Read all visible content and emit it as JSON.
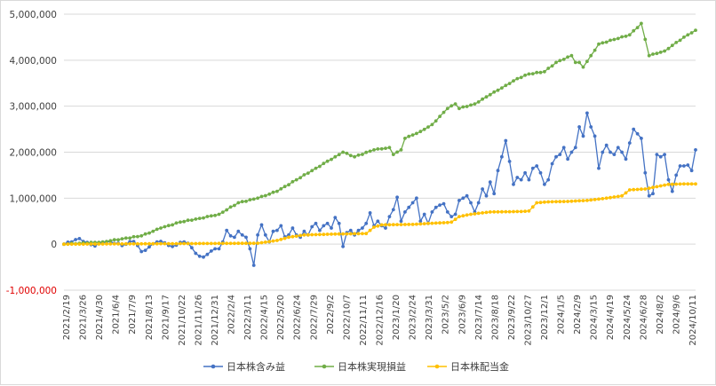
{
  "chart_data": {
    "type": "line",
    "y_ticks": [
      "5,000,000",
      "4,000,000",
      "3,000,000",
      "2,000,000",
      "1,000,000",
      "0",
      "-1,000,000"
    ],
    "y_tick_values": [
      5000000,
      4000000,
      3000000,
      2000000,
      1000000,
      0,
      -1000000
    ],
    "ylim": [
      -1000000,
      5000000
    ],
    "x_tick_labels": [
      "2021/2/19",
      "2021/3/26",
      "2021/4/30",
      "2021/6/4",
      "2021/7/9",
      "2021/8/13",
      "2021/9/17",
      "2021/10/22",
      "2021/11/26",
      "2021/12/31",
      "2022/2/4",
      "2022/3/11",
      "2022/4/15",
      "2022/5/20",
      "2022/6/24",
      "2022/7/29",
      "2022/9/2",
      "2022/10/7",
      "2022/11/11",
      "2022/12/16",
      "2023/1/20",
      "2023/2/24",
      "2023/3/31",
      "2023/5/2",
      "2023/6/9",
      "2023/7/14",
      "2023/8/18",
      "2023/9/22",
      "2023/10/27",
      "2023/12/1",
      "2024/1/5",
      "2024/2/9",
      "2024/3/15",
      "2024/4/19",
      "2024/5/24",
      "2024/6/28",
      "2024/8/2",
      "2024/9/6",
      "2024/10/11"
    ],
    "grid": true,
    "legend_position": "bottom",
    "series": [
      {
        "name": "日本株含み益",
        "color": "#4472c4",
        "anchors": [
          [
            0,
            0
          ],
          [
            2,
            50000
          ],
          [
            4,
            120000
          ],
          [
            6,
            40000
          ],
          [
            8,
            -40000
          ],
          [
            10,
            30000
          ],
          [
            12,
            60000
          ],
          [
            14,
            20000
          ],
          [
            15,
            -30000
          ],
          [
            16,
            0
          ],
          [
            18,
            60000
          ],
          [
            19,
            -30000
          ],
          [
            20,
            -160000
          ],
          [
            22,
            -60000
          ],
          [
            24,
            50000
          ],
          [
            26,
            30000
          ],
          [
            28,
            -50000
          ],
          [
            30,
            40000
          ],
          [
            32,
            20000
          ],
          [
            34,
            -200000
          ],
          [
            36,
            -280000
          ],
          [
            38,
            -150000
          ],
          [
            40,
            -100000
          ],
          [
            41,
            50000
          ],
          [
            42,
            300000
          ],
          [
            43,
            180000
          ],
          [
            44,
            150000
          ],
          [
            45,
            280000
          ],
          [
            46,
            200000
          ],
          [
            47,
            150000
          ],
          [
            48,
            -100000
          ],
          [
            49,
            -460000
          ],
          [
            50,
            200000
          ],
          [
            51,
            420000
          ],
          [
            52,
            200000
          ],
          [
            53,
            50000
          ],
          [
            54,
            280000
          ],
          [
            55,
            300000
          ],
          [
            56,
            400000
          ],
          [
            57,
            160000
          ],
          [
            58,
            200000
          ],
          [
            59,
            350000
          ],
          [
            60,
            200000
          ],
          [
            61,
            150000
          ],
          [
            62,
            280000
          ],
          [
            63,
            200000
          ],
          [
            64,
            380000
          ],
          [
            65,
            450000
          ],
          [
            66,
            300000
          ],
          [
            67,
            400000
          ],
          [
            68,
            450000
          ],
          [
            69,
            350000
          ],
          [
            70,
            580000
          ],
          [
            71,
            450000
          ],
          [
            72,
            -50000
          ],
          [
            73,
            250000
          ],
          [
            74,
            300000
          ],
          [
            75,
            200000
          ],
          [
            76,
            300000
          ],
          [
            77,
            350000
          ],
          [
            78,
            450000
          ],
          [
            79,
            680000
          ],
          [
            80,
            400000
          ],
          [
            81,
            500000
          ],
          [
            82,
            400000
          ],
          [
            83,
            350000
          ],
          [
            84,
            600000
          ],
          [
            85,
            750000
          ],
          [
            86,
            1020000
          ],
          [
            87,
            500000
          ],
          [
            88,
            700000
          ],
          [
            89,
            800000
          ],
          [
            90,
            900000
          ],
          [
            91,
            1000000
          ],
          [
            92,
            500000
          ],
          [
            93,
            650000
          ],
          [
            94,
            450000
          ],
          [
            95,
            700000
          ],
          [
            96,
            800000
          ],
          [
            97,
            850000
          ],
          [
            98,
            880000
          ],
          [
            99,
            700000
          ],
          [
            100,
            600000
          ],
          [
            101,
            650000
          ],
          [
            102,
            950000
          ],
          [
            103,
            1000000
          ],
          [
            104,
            1050000
          ],
          [
            105,
            900000
          ],
          [
            106,
            700000
          ],
          [
            107,
            900000
          ],
          [
            108,
            1200000
          ],
          [
            109,
            1050000
          ],
          [
            110,
            1350000
          ],
          [
            111,
            1100000
          ],
          [
            112,
            1600000
          ],
          [
            113,
            1900000
          ],
          [
            114,
            2250000
          ],
          [
            115,
            1800000
          ],
          [
            116,
            1300000
          ],
          [
            117,
            1450000
          ],
          [
            118,
            1400000
          ],
          [
            119,
            1550000
          ],
          [
            120,
            1400000
          ],
          [
            121,
            1650000
          ],
          [
            122,
            1700000
          ],
          [
            123,
            1550000
          ],
          [
            124,
            1300000
          ],
          [
            125,
            1400000
          ],
          [
            126,
            1750000
          ],
          [
            127,
            1900000
          ],
          [
            128,
            1950000
          ],
          [
            129,
            2100000
          ],
          [
            130,
            1850000
          ],
          [
            131,
            2000000
          ],
          [
            132,
            2100000
          ],
          [
            133,
            2550000
          ],
          [
            134,
            2350000
          ],
          [
            135,
            2850000
          ],
          [
            136,
            2550000
          ],
          [
            137,
            2350000
          ],
          [
            138,
            1650000
          ],
          [
            139,
            2000000
          ],
          [
            140,
            2150000
          ],
          [
            141,
            2000000
          ],
          [
            142,
            1950000
          ],
          [
            143,
            2100000
          ],
          [
            144,
            2000000
          ],
          [
            145,
            1850000
          ],
          [
            146,
            2200000
          ],
          [
            147,
            2500000
          ],
          [
            148,
            2400000
          ],
          [
            149,
            2300000
          ],
          [
            150,
            1550000
          ],
          [
            151,
            1050000
          ],
          [
            152,
            1100000
          ],
          [
            153,
            1950000
          ],
          [
            154,
            1900000
          ],
          [
            155,
            1950000
          ],
          [
            156,
            1400000
          ],
          [
            157,
            1150000
          ],
          [
            158,
            1500000
          ],
          [
            159,
            1700000
          ],
          [
            160,
            1700000
          ],
          [
            161,
            1720000
          ],
          [
            162,
            1600000
          ],
          [
            163,
            2050000
          ]
        ]
      },
      {
        "name": "日本株実現損益",
        "color": "#70ad47",
        "anchors": [
          [
            0,
            0
          ],
          [
            10,
            50000
          ],
          [
            20,
            180000
          ],
          [
            25,
            350000
          ],
          [
            30,
            480000
          ],
          [
            35,
            560000
          ],
          [
            40,
            650000
          ],
          [
            45,
            900000
          ],
          [
            50,
            1000000
          ],
          [
            55,
            1150000
          ],
          [
            60,
            1400000
          ],
          [
            65,
            1650000
          ],
          [
            70,
            1900000
          ],
          [
            72,
            2000000
          ],
          [
            75,
            1900000
          ],
          [
            80,
            2050000
          ],
          [
            84,
            2100000
          ],
          [
            85,
            1950000
          ],
          [
            87,
            2050000
          ],
          [
            88,
            2300000
          ],
          [
            92,
            2450000
          ],
          [
            95,
            2600000
          ],
          [
            99,
            2950000
          ],
          [
            101,
            3050000
          ],
          [
            102,
            2950000
          ],
          [
            106,
            3050000
          ],
          [
            110,
            3250000
          ],
          [
            114,
            3450000
          ],
          [
            117,
            3600000
          ],
          [
            120,
            3700000
          ],
          [
            124,
            3750000
          ],
          [
            127,
            3950000
          ],
          [
            131,
            4100000
          ],
          [
            132,
            3950000
          ],
          [
            133,
            3950000
          ],
          [
            134,
            3850000
          ],
          [
            136,
            4100000
          ],
          [
            138,
            4350000
          ],
          [
            142,
            4450000
          ],
          [
            146,
            4550000
          ],
          [
            149,
            4800000
          ],
          [
            151,
            4100000
          ],
          [
            155,
            4200000
          ],
          [
            160,
            4500000
          ],
          [
            163,
            4650000
          ]
        ]
      },
      {
        "name": "日本株配当金",
        "color": "#ffc000",
        "anchors": [
          [
            0,
            0
          ],
          [
            50,
            20000
          ],
          [
            55,
            80000
          ],
          [
            58,
            150000
          ],
          [
            62,
            200000
          ],
          [
            70,
            220000
          ],
          [
            78,
            230000
          ],
          [
            80,
            370000
          ],
          [
            82,
            420000
          ],
          [
            90,
            430000
          ],
          [
            94,
            450000
          ],
          [
            99,
            470000
          ],
          [
            100,
            480000
          ],
          [
            102,
            600000
          ],
          [
            105,
            650000
          ],
          [
            110,
            700000
          ],
          [
            118,
            710000
          ],
          [
            120,
            720000
          ],
          [
            122,
            900000
          ],
          [
            125,
            920000
          ],
          [
            130,
            930000
          ],
          [
            135,
            950000
          ],
          [
            140,
            1000000
          ],
          [
            144,
            1050000
          ],
          [
            146,
            1180000
          ],
          [
            150,
            1200000
          ],
          [
            153,
            1250000
          ],
          [
            156,
            1300000
          ],
          [
            160,
            1310000
          ],
          [
            163,
            1310000
          ]
        ]
      }
    ]
  }
}
